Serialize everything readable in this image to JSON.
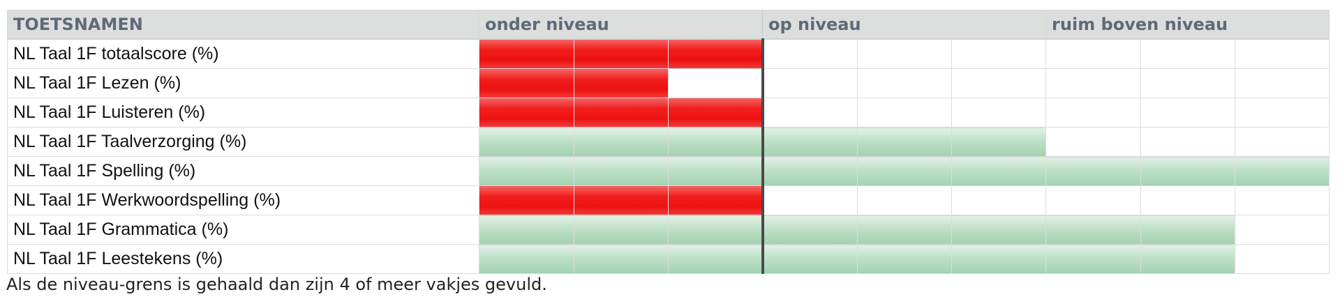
{
  "header": {
    "name_col": "TOETSNAMEN",
    "groups": [
      "onder niveau",
      "op niveau",
      "ruim boven niveau"
    ]
  },
  "colors": {
    "below_level": "#ec1111",
    "at_or_above_level": "#a2d2b0",
    "boundary_line": "#4a4a4a"
  },
  "chart_data": {
    "type": "table",
    "columns": [
      "TOETSNAMEN",
      "onder niveau",
      "op niveau",
      "ruim boven niveau"
    ],
    "total_boxes": 9,
    "level_boundary_after_box": 3,
    "rows": [
      {
        "name": "NL Taal 1F totaalscore (%)",
        "filled": 3,
        "status": "onder niveau"
      },
      {
        "name": "NL Taal 1F Lezen (%)",
        "filled": 2,
        "status": "onder niveau"
      },
      {
        "name": "NL Taal 1F Luisteren (%)",
        "filled": 3,
        "status": "onder niveau"
      },
      {
        "name": "NL Taal 1F Taalverzorging (%)",
        "filled": 6,
        "status": "op niveau"
      },
      {
        "name": "NL Taal 1F Spelling (%)",
        "filled": 9,
        "status": "ruim boven niveau"
      },
      {
        "name": "NL Taal 1F Werkwoordspelling (%)",
        "filled": 3,
        "status": "onder niveau"
      },
      {
        "name": "NL Taal 1F Grammatica (%)",
        "filled": 8,
        "status": "ruim boven niveau"
      },
      {
        "name": "NL Taal 1F Leestekens (%)",
        "filled": 8,
        "status": "ruim boven niveau"
      }
    ]
  },
  "footer_note": "Als de niveau-grens is gehaald dan zijn 4 of meer vakjes gevuld."
}
